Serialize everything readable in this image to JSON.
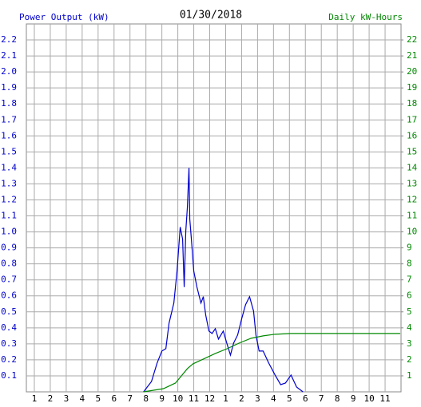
{
  "chart_data": {
    "type": "line",
    "title": "01/30/2018",
    "y_label": "Power Output (kW)",
    "y2_label": "Daily kW-Hours",
    "xlim": [
      0.5,
      24
    ],
    "xticks": [
      1,
      2,
      3,
      4,
      5,
      6,
      7,
      8,
      9,
      10,
      11,
      {
        "value": 12,
        "label": "12"
      },
      {
        "value": 13,
        "label": "1"
      },
      {
        "value": 14,
        "label": "2"
      },
      {
        "value": 15,
        "label": "3"
      },
      {
        "value": 16,
        "label": "4"
      },
      {
        "value": 17,
        "label": "5"
      },
      {
        "value": 18,
        "label": "6"
      },
      {
        "value": 19,
        "label": "7"
      },
      {
        "value": 20,
        "label": "8"
      },
      {
        "value": 21,
        "label": "9"
      },
      {
        "value": 22,
        "label": "10"
      },
      {
        "value": 23,
        "label": "11"
      }
    ],
    "ylim": [
      0,
      2.3
    ],
    "yticks": [
      0.1,
      0.2,
      0.3,
      0.4,
      0.5,
      0.6,
      0.7,
      0.8,
      0.9,
      {
        "value": 1,
        "label": "1.0"
      },
      1.1,
      1.2,
      1.3,
      1.4,
      1.5,
      1.6,
      1.7,
      1.8,
      1.9,
      {
        "value": 2,
        "label": "2.0"
      },
      2.1,
      2.2
    ],
    "y2lim": [
      0,
      23
    ],
    "y2ticks": [
      1,
      2,
      3,
      4,
      5,
      6,
      7,
      8,
      9,
      10,
      11,
      12,
      13,
      14,
      15,
      16,
      17,
      18,
      19,
      20,
      21,
      22
    ],
    "grid": true,
    "series": [
      {
        "name": "Power Output (kW)",
        "color": "#0000cc",
        "x": [
          7.85,
          8.35,
          8.7,
          9.0,
          9.25,
          9.45,
          9.75,
          9.95,
          10.15,
          10.3,
          10.4,
          10.5,
          10.6,
          10.7,
          10.75,
          10.85,
          11.0,
          11.2,
          11.45,
          11.6,
          11.75,
          11.95,
          12.15,
          12.35,
          12.55,
          12.85,
          13.1,
          13.3,
          13.5,
          13.75,
          14.0,
          14.25,
          14.5,
          14.75,
          14.9,
          15.1,
          15.35,
          15.7,
          16.1,
          16.45,
          16.75,
          17.1,
          17.45,
          17.85
        ],
        "values": [
          0,
          0.065,
          0.18,
          0.255,
          0.27,
          0.43,
          0.555,
          0.755,
          1.03,
          0.955,
          0.655,
          1.005,
          1.155,
          1.4,
          1.08,
          0.955,
          0.755,
          0.655,
          0.555,
          0.595,
          0.48,
          0.38,
          0.365,
          0.395,
          0.33,
          0.38,
          0.295,
          0.23,
          0.305,
          0.355,
          0.455,
          0.545,
          0.595,
          0.505,
          0.355,
          0.255,
          0.255,
          0.18,
          0.105,
          0.045,
          0.055,
          0.105,
          0.03,
          0
        ]
      },
      {
        "name": "Daily kW-Hours",
        "color": "#008800",
        "axis": "y2",
        "x": [
          7.85,
          9.1,
          9.85,
          10.6,
          10.95,
          11.6,
          12.35,
          13.1,
          13.85,
          14.6,
          15.35,
          16.1,
          17.1,
          23.95
        ],
        "values": [
          0,
          0.2,
          0.55,
          1.45,
          1.75,
          2.05,
          2.4,
          2.7,
          3.05,
          3.35,
          3.5,
          3.6,
          3.65,
          3.65
        ]
      }
    ]
  }
}
